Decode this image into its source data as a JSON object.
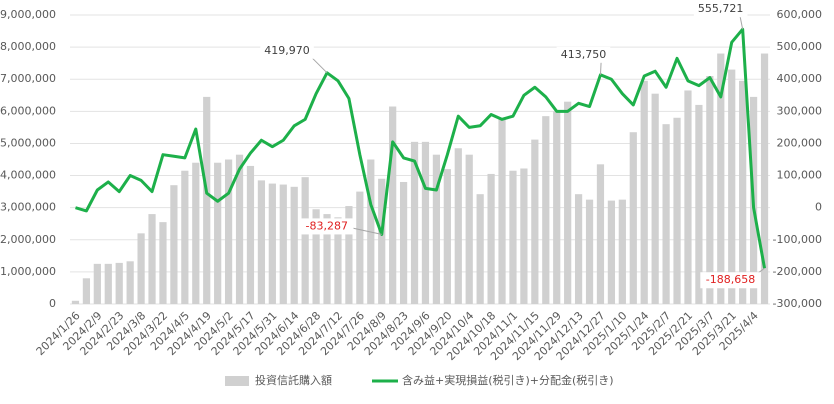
{
  "chart_data": {
    "type": "bar+line",
    "categories": [
      "2024/1/26",
      null,
      "2024/2/9",
      null,
      "2024/2/23",
      null,
      "2024/3/8",
      null,
      "2024/3/22",
      null,
      "2024/4/5",
      null,
      "2024/4/19",
      null,
      "2024/5/2",
      null,
      "2024/5/17",
      null,
      "2024/5/31",
      null,
      "2024/6/14",
      null,
      "2024/6/28",
      null,
      "2024/7/12",
      null,
      "2024/7/26",
      null,
      "2024/8/9",
      null,
      "2024/8/23",
      null,
      "2024/9/6",
      null,
      "2024/9/20",
      null,
      "2024/10/4",
      null,
      "2024/10/18",
      null,
      "2024/11/1",
      null,
      "2024/11/15",
      null,
      "2024/11/29",
      null,
      "2024/12/13",
      null,
      "2024/12/27",
      null,
      "2025/1/10",
      null,
      "2025/1/24",
      null,
      "2025/2/7",
      null,
      "2025/2/21",
      null,
      "2025/3/7",
      null,
      "2025/3/21",
      null,
      "2025/4/4",
      null
    ],
    "series": [
      {
        "name": "投資信託購入額",
        "type": "bar",
        "color": "#d0d0d0",
        "values": [
          100000,
          800000,
          1250000,
          1250000,
          1280000,
          1330000,
          2200000,
          2800000,
          2550000,
          3700000,
          4150000,
          4400000,
          6450000,
          4400000,
          4500000,
          4650000,
          4300000,
          3850000,
          3750000,
          3720000,
          3650000,
          3950000,
          2950000,
          2800000,
          2700000,
          3050000,
          3500000,
          4500000,
          3900000,
          6150000,
          3800000,
          5050000,
          5050000,
          4650000,
          4200000,
          4850000,
          4650000,
          3420000,
          4050000,
          5800000,
          4150000,
          4220000,
          5120000,
          5850000,
          6000000,
          6300000,
          3420000,
          3250000,
          4350000,
          3220000,
          3250000,
          5350000,
          6950000,
          6550000,
          5600000,
          5800000,
          6650000,
          6200000,
          7100000,
          7800000,
          7300000,
          6950000,
          6450000,
          7800000
        ]
      },
      {
        "name": "含み益+実現損益(税引き)+分配金(税引き)",
        "type": "line",
        "axis": "y2",
        "color": "#1db04a",
        "values": [
          0,
          -10000,
          55000,
          80000,
          50000,
          100000,
          85000,
          50000,
          165000,
          160000,
          155000,
          245000,
          45000,
          20000,
          45000,
          120000,
          170000,
          210000,
          190000,
          210000,
          255000,
          275000,
          355000,
          419970,
          395000,
          340000,
          165000,
          10000,
          -83287,
          205000,
          155000,
          145000,
          60000,
          55000,
          165000,
          285000,
          250000,
          255000,
          290000,
          275000,
          285000,
          350000,
          375000,
          345000,
          300000,
          300000,
          325000,
          315000,
          413750,
          400000,
          355000,
          320000,
          410000,
          425000,
          375000,
          465000,
          395000,
          380000,
          405000,
          345000,
          515000,
          555721,
          0,
          -188658
        ],
        "value_labels": [
          null,
          null,
          null,
          null,
          null,
          null,
          null,
          null,
          null,
          null,
          null,
          null,
          null,
          null,
          null,
          null,
          null,
          null,
          null,
          null,
          null,
          null,
          null,
          "419,970",
          null,
          null,
          null,
          null,
          "-83,287",
          null,
          null,
          null,
          null,
          null,
          null,
          null,
          null,
          null,
          null,
          null,
          null,
          null,
          null,
          null,
          null,
          null,
          null,
          null,
          "413,750",
          null,
          null,
          null,
          null,
          null,
          null,
          null,
          null,
          null,
          null,
          null,
          null,
          "555,721",
          null,
          "-188,658"
        ]
      }
    ],
    "ylim": [
      0,
      9000000
    ],
    "yticks": [
      0,
      {
        "value": 1000000,
        "label": "1,000,000"
      },
      {
        "value": 2000000,
        "label": "2,000,000"
      },
      {
        "value": 3000000,
        "label": "3,000,000"
      },
      {
        "value": 4000000,
        "label": "4,000,000"
      },
      {
        "value": 5000000,
        "label": "5,000,000"
      },
      {
        "value": 6000000,
        "label": "6,000,000"
      },
      {
        "value": 7000000,
        "label": "7,000,000"
      },
      {
        "value": 8000000,
        "label": "8,000,000"
      },
      {
        "value": 9000000,
        "label": "9,000,000"
      }
    ],
    "y2lim": [
      -300000,
      600000
    ],
    "y2ticks": [
      {
        "value": -300000,
        "label": "-300,000"
      },
      {
        "value": -200000,
        "label": "-200,000"
      },
      {
        "value": -100000,
        "label": "-100,000"
      },
      0,
      {
        "value": 100000,
        "label": "100,000"
      },
      {
        "value": 200000,
        "label": "200,000"
      },
      {
        "value": 300000,
        "label": "300,000"
      },
      {
        "value": 400000,
        "label": "400,000"
      },
      {
        "value": 500000,
        "label": "500,000"
      },
      {
        "value": 600000,
        "label": "600,000"
      }
    ],
    "grid": true,
    "legend": "bottom"
  }
}
